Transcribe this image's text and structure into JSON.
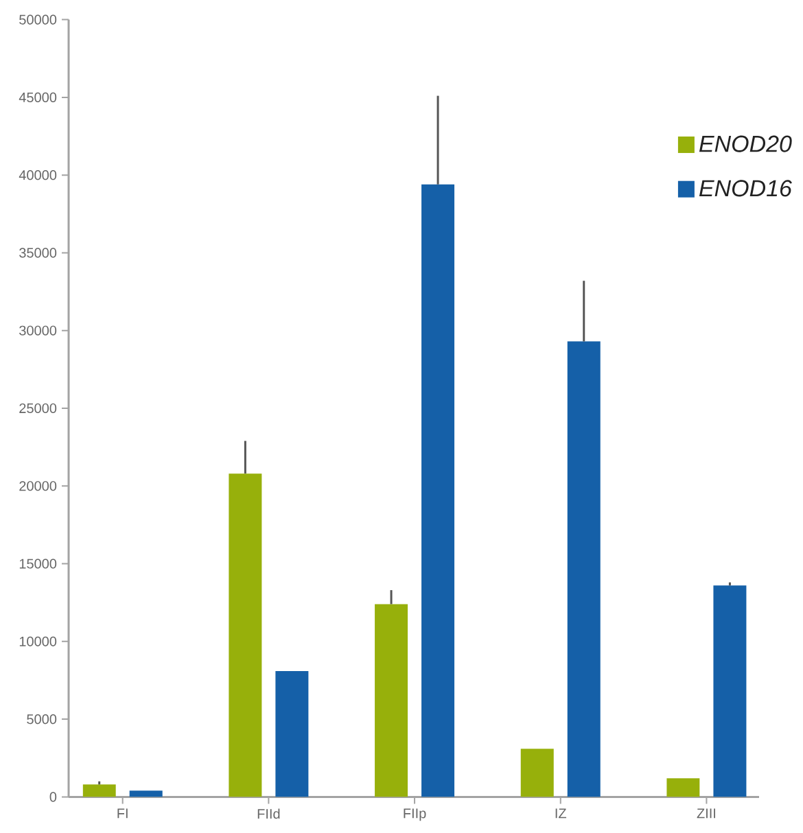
{
  "chart_data": {
    "type": "bar",
    "categories": [
      "FI",
      "FIId",
      "FIIp",
      "IZ",
      "ZIII"
    ],
    "series": [
      {
        "name": "ENOD20",
        "color": "#97b00b",
        "values": [
          800,
          20800,
          12400,
          3100,
          1200
        ],
        "errors": [
          [
            800,
            1000
          ],
          [
            20800,
            22900
          ],
          [
            12400,
            13300
          ],
          null,
          null
        ]
      },
      {
        "name": "ENOD16",
        "color": "#1560a8",
        "values": [
          400,
          8100,
          39400,
          29300,
          13600
        ],
        "errors": [
          null,
          null,
          [
            39400,
            45100
          ],
          [
            29300,
            33200
          ],
          [
            13600,
            13800
          ]
        ]
      }
    ],
    "ylim": [
      0,
      50000
    ],
    "yticks": [
      0,
      5000,
      10000,
      15000,
      20000,
      25000,
      30000,
      35000,
      40000,
      45000,
      50000
    ],
    "legend": "top right"
  }
}
